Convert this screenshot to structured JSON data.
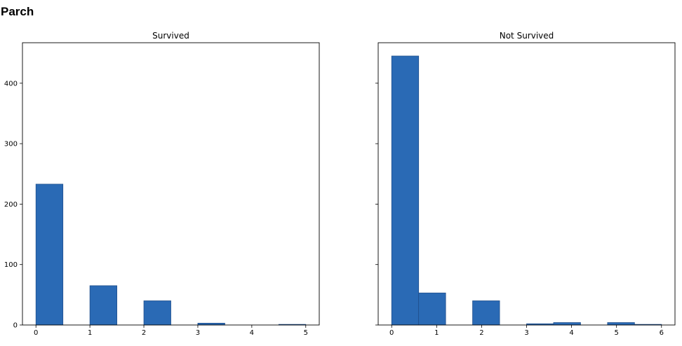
{
  "page": {
    "heading": "Parch"
  },
  "chart_data": [
    {
      "type": "bar",
      "title": "Survived",
      "xlabel": "",
      "ylabel": "",
      "xlim": [
        -0.25,
        5.25
      ],
      "ylim": [
        0,
        467
      ],
      "xticks": [
        0,
        1,
        2,
        3,
        4,
        5
      ],
      "yticks": [
        0,
        100,
        200,
        300,
        400
      ],
      "show_ytick_labels": true,
      "bar_color": "#2a6ab5",
      "bins": [
        {
          "start": 0.0,
          "end": 0.5,
          "value": 233
        },
        {
          "start": 0.5,
          "end": 1.0,
          "value": 0
        },
        {
          "start": 1.0,
          "end": 1.5,
          "value": 65
        },
        {
          "start": 1.5,
          "end": 2.0,
          "value": 0
        },
        {
          "start": 2.0,
          "end": 2.5,
          "value": 40
        },
        {
          "start": 2.5,
          "end": 3.0,
          "value": 0
        },
        {
          "start": 3.0,
          "end": 3.5,
          "value": 3
        },
        {
          "start": 3.5,
          "end": 4.0,
          "value": 0
        },
        {
          "start": 4.0,
          "end": 4.5,
          "value": 0
        },
        {
          "start": 4.5,
          "end": 5.0,
          "value": 1
        }
      ]
    },
    {
      "type": "bar",
      "title": "Not Survived",
      "xlabel": "",
      "ylabel": "",
      "xlim": [
        -0.3,
        6.3
      ],
      "ylim": [
        0,
        467
      ],
      "xticks": [
        0,
        1,
        2,
        3,
        4,
        5,
        6
      ],
      "yticks": [
        0,
        100,
        200,
        300,
        400
      ],
      "show_ytick_labels": false,
      "bar_color": "#2a6ab5",
      "bins": [
        {
          "start": 0.0,
          "end": 0.6,
          "value": 445
        },
        {
          "start": 0.6,
          "end": 1.2,
          "value": 53
        },
        {
          "start": 1.2,
          "end": 1.8,
          "value": 0
        },
        {
          "start": 1.8,
          "end": 2.4,
          "value": 40
        },
        {
          "start": 2.4,
          "end": 3.0,
          "value": 0
        },
        {
          "start": 3.0,
          "end": 3.6,
          "value": 2
        },
        {
          "start": 3.6,
          "end": 4.2,
          "value": 4
        },
        {
          "start": 4.2,
          "end": 4.8,
          "value": 0
        },
        {
          "start": 4.8,
          "end": 5.4,
          "value": 4
        },
        {
          "start": 5.4,
          "end": 6.0,
          "value": 1
        }
      ]
    }
  ]
}
